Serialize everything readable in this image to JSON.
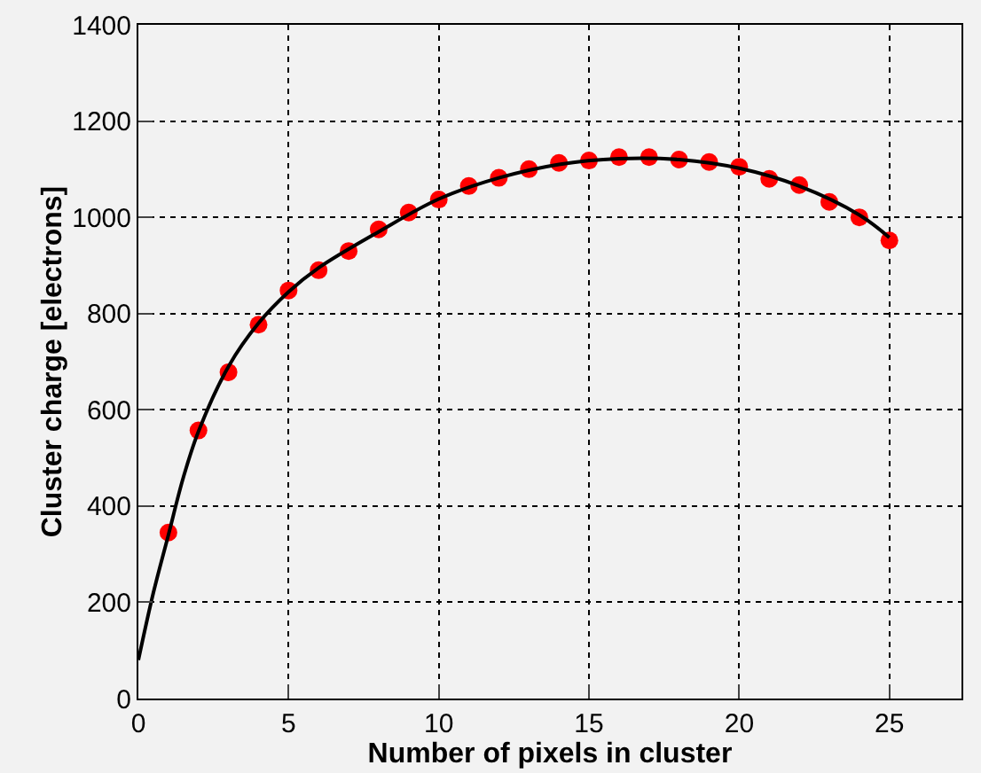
{
  "chart_data": {
    "type": "scatter",
    "xlabel": "Number of pixels in cluster",
    "ylabel": "Cluster charge [electrons]",
    "xlim": [
      0,
      27.4
    ],
    "xticks": [
      0,
      5,
      10,
      15,
      20,
      25
    ],
    "ylim": [
      0,
      1400
    ],
    "yticks": [
      0,
      200,
      400,
      600,
      800,
      1000,
      1200,
      1400
    ],
    "grid": true,
    "legend": false,
    "series": [
      {
        "marker": "circle",
        "color": "#ff0000",
        "x": [
          1,
          2,
          3,
          4,
          5,
          6,
          7,
          8,
          9,
          10,
          11,
          12,
          13,
          14,
          15,
          16,
          17,
          18,
          19,
          20,
          21,
          22,
          23,
          24,
          25
        ],
        "values": [
          345,
          557,
          678,
          777,
          848,
          890,
          930,
          975,
          1010,
          1037,
          1065,
          1082,
          1100,
          1113,
          1118,
          1125,
          1125,
          1120,
          1115,
          1105,
          1080,
          1067,
          1032,
          1000,
          952
        ]
      },
      {
        "type": "line",
        "color": "#000000",
        "x": [
          0,
          0.5,
          1,
          1.5,
          2,
          3,
          4,
          5,
          6,
          8,
          10,
          12,
          14,
          16,
          18,
          20,
          22,
          24,
          25
        ],
        "values": [
          80,
          220,
          340,
          460,
          555,
          690,
          780,
          845,
          895,
          970,
          1038,
          1082,
          1110,
          1122,
          1120,
          1102,
          1065,
          1005,
          958
        ]
      }
    ]
  }
}
